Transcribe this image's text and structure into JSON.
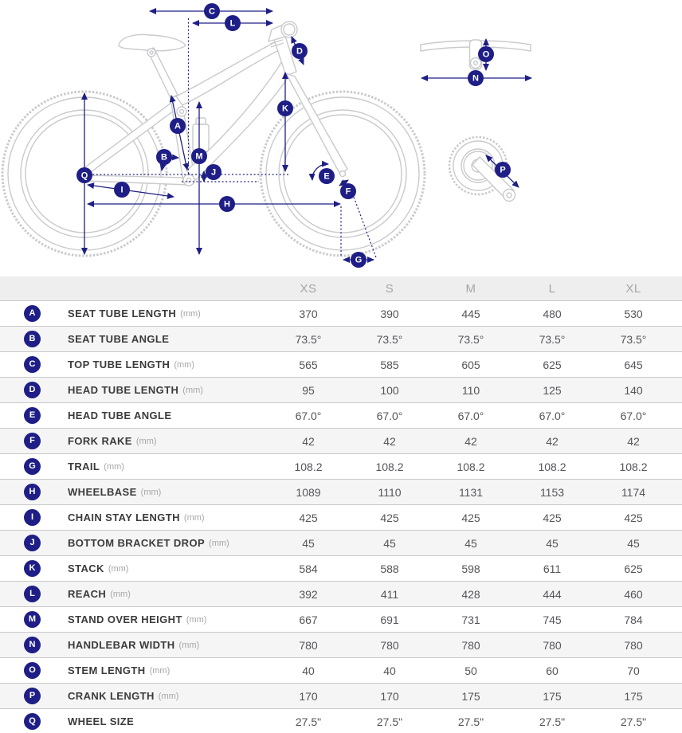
{
  "diagram": {
    "badges": [
      "A",
      "B",
      "C",
      "D",
      "E",
      "F",
      "G",
      "H",
      "I",
      "J",
      "K",
      "L",
      "M",
      "N",
      "O",
      "P",
      "Q"
    ]
  },
  "table": {
    "columns": [
      "XS",
      "S",
      "M",
      "L",
      "XL"
    ],
    "rows": [
      {
        "badge": "A",
        "label": "SEAT TUBE LENGTH",
        "unit": "(mm)",
        "values": [
          "370",
          "390",
          "445",
          "480",
          "530"
        ]
      },
      {
        "badge": "B",
        "label": "SEAT TUBE ANGLE",
        "unit": "",
        "values": [
          "73.5°",
          "73.5°",
          "73.5°",
          "73.5°",
          "73.5°"
        ]
      },
      {
        "badge": "C",
        "label": "TOP TUBE LENGTH",
        "unit": "(mm)",
        "values": [
          "565",
          "585",
          "605",
          "625",
          "645"
        ]
      },
      {
        "badge": "D",
        "label": "HEAD TUBE LENGTH",
        "unit": "(mm)",
        "values": [
          "95",
          "100",
          "110",
          "125",
          "140"
        ]
      },
      {
        "badge": "E",
        "label": "HEAD TUBE ANGLE",
        "unit": "",
        "values": [
          "67.0°",
          "67.0°",
          "67.0°",
          "67.0°",
          "67.0°"
        ]
      },
      {
        "badge": "F",
        "label": "FORK RAKE",
        "unit": "(mm)",
        "values": [
          "42",
          "42",
          "42",
          "42",
          "42"
        ]
      },
      {
        "badge": "G",
        "label": "TRAIL",
        "unit": "(mm)",
        "values": [
          "108.2",
          "108.2",
          "108.2",
          "108.2",
          "108.2"
        ]
      },
      {
        "badge": "H",
        "label": "WHEELBASE",
        "unit": "(mm)",
        "values": [
          "1089",
          "1110",
          "1131",
          "1153",
          "1174"
        ]
      },
      {
        "badge": "I",
        "label": "CHAIN STAY LENGTH",
        "unit": "(mm)",
        "values": [
          "425",
          "425",
          "425",
          "425",
          "425"
        ]
      },
      {
        "badge": "J",
        "label": "BOTTOM BRACKET DROP",
        "unit": "(mm)",
        "values": [
          "45",
          "45",
          "45",
          "45",
          "45"
        ]
      },
      {
        "badge": "K",
        "label": "STACK",
        "unit": "(mm)",
        "values": [
          "584",
          "588",
          "598",
          "611",
          "625"
        ]
      },
      {
        "badge": "L",
        "label": "REACH",
        "unit": "(mm)",
        "values": [
          "392",
          "411",
          "428",
          "444",
          "460"
        ]
      },
      {
        "badge": "M",
        "label": "STAND OVER HEIGHT",
        "unit": "(mm)",
        "values": [
          "667",
          "691",
          "731",
          "745",
          "784"
        ]
      },
      {
        "badge": "N",
        "label": "HANDLEBAR WIDTH",
        "unit": "(mm)",
        "values": [
          "780",
          "780",
          "780",
          "780",
          "780"
        ]
      },
      {
        "badge": "O",
        "label": "STEM LENGTH",
        "unit": "(mm)",
        "values": [
          "40",
          "40",
          "50",
          "60",
          "70"
        ]
      },
      {
        "badge": "P",
        "label": "CRANK LENGTH",
        "unit": "(mm)",
        "values": [
          "170",
          "170",
          "175",
          "175",
          "175"
        ]
      },
      {
        "badge": "Q",
        "label": "WHEEL SIZE",
        "unit": "",
        "values": [
          "27.5\"",
          "27.5\"",
          "27.5\"",
          "27.5\"",
          "27.5\""
        ]
      }
    ]
  },
  "colors": {
    "accent_navy": "#1e1e86",
    "bike_line_gray": "#c9cacc",
    "header_bg": "#eeeeee",
    "stripe_bg": "#f5f5f5",
    "row_border": "#c8c8c8",
    "label_text": "#3b3b3b",
    "value_text": "#55555a",
    "muted_text": "#a6a6a6"
  }
}
